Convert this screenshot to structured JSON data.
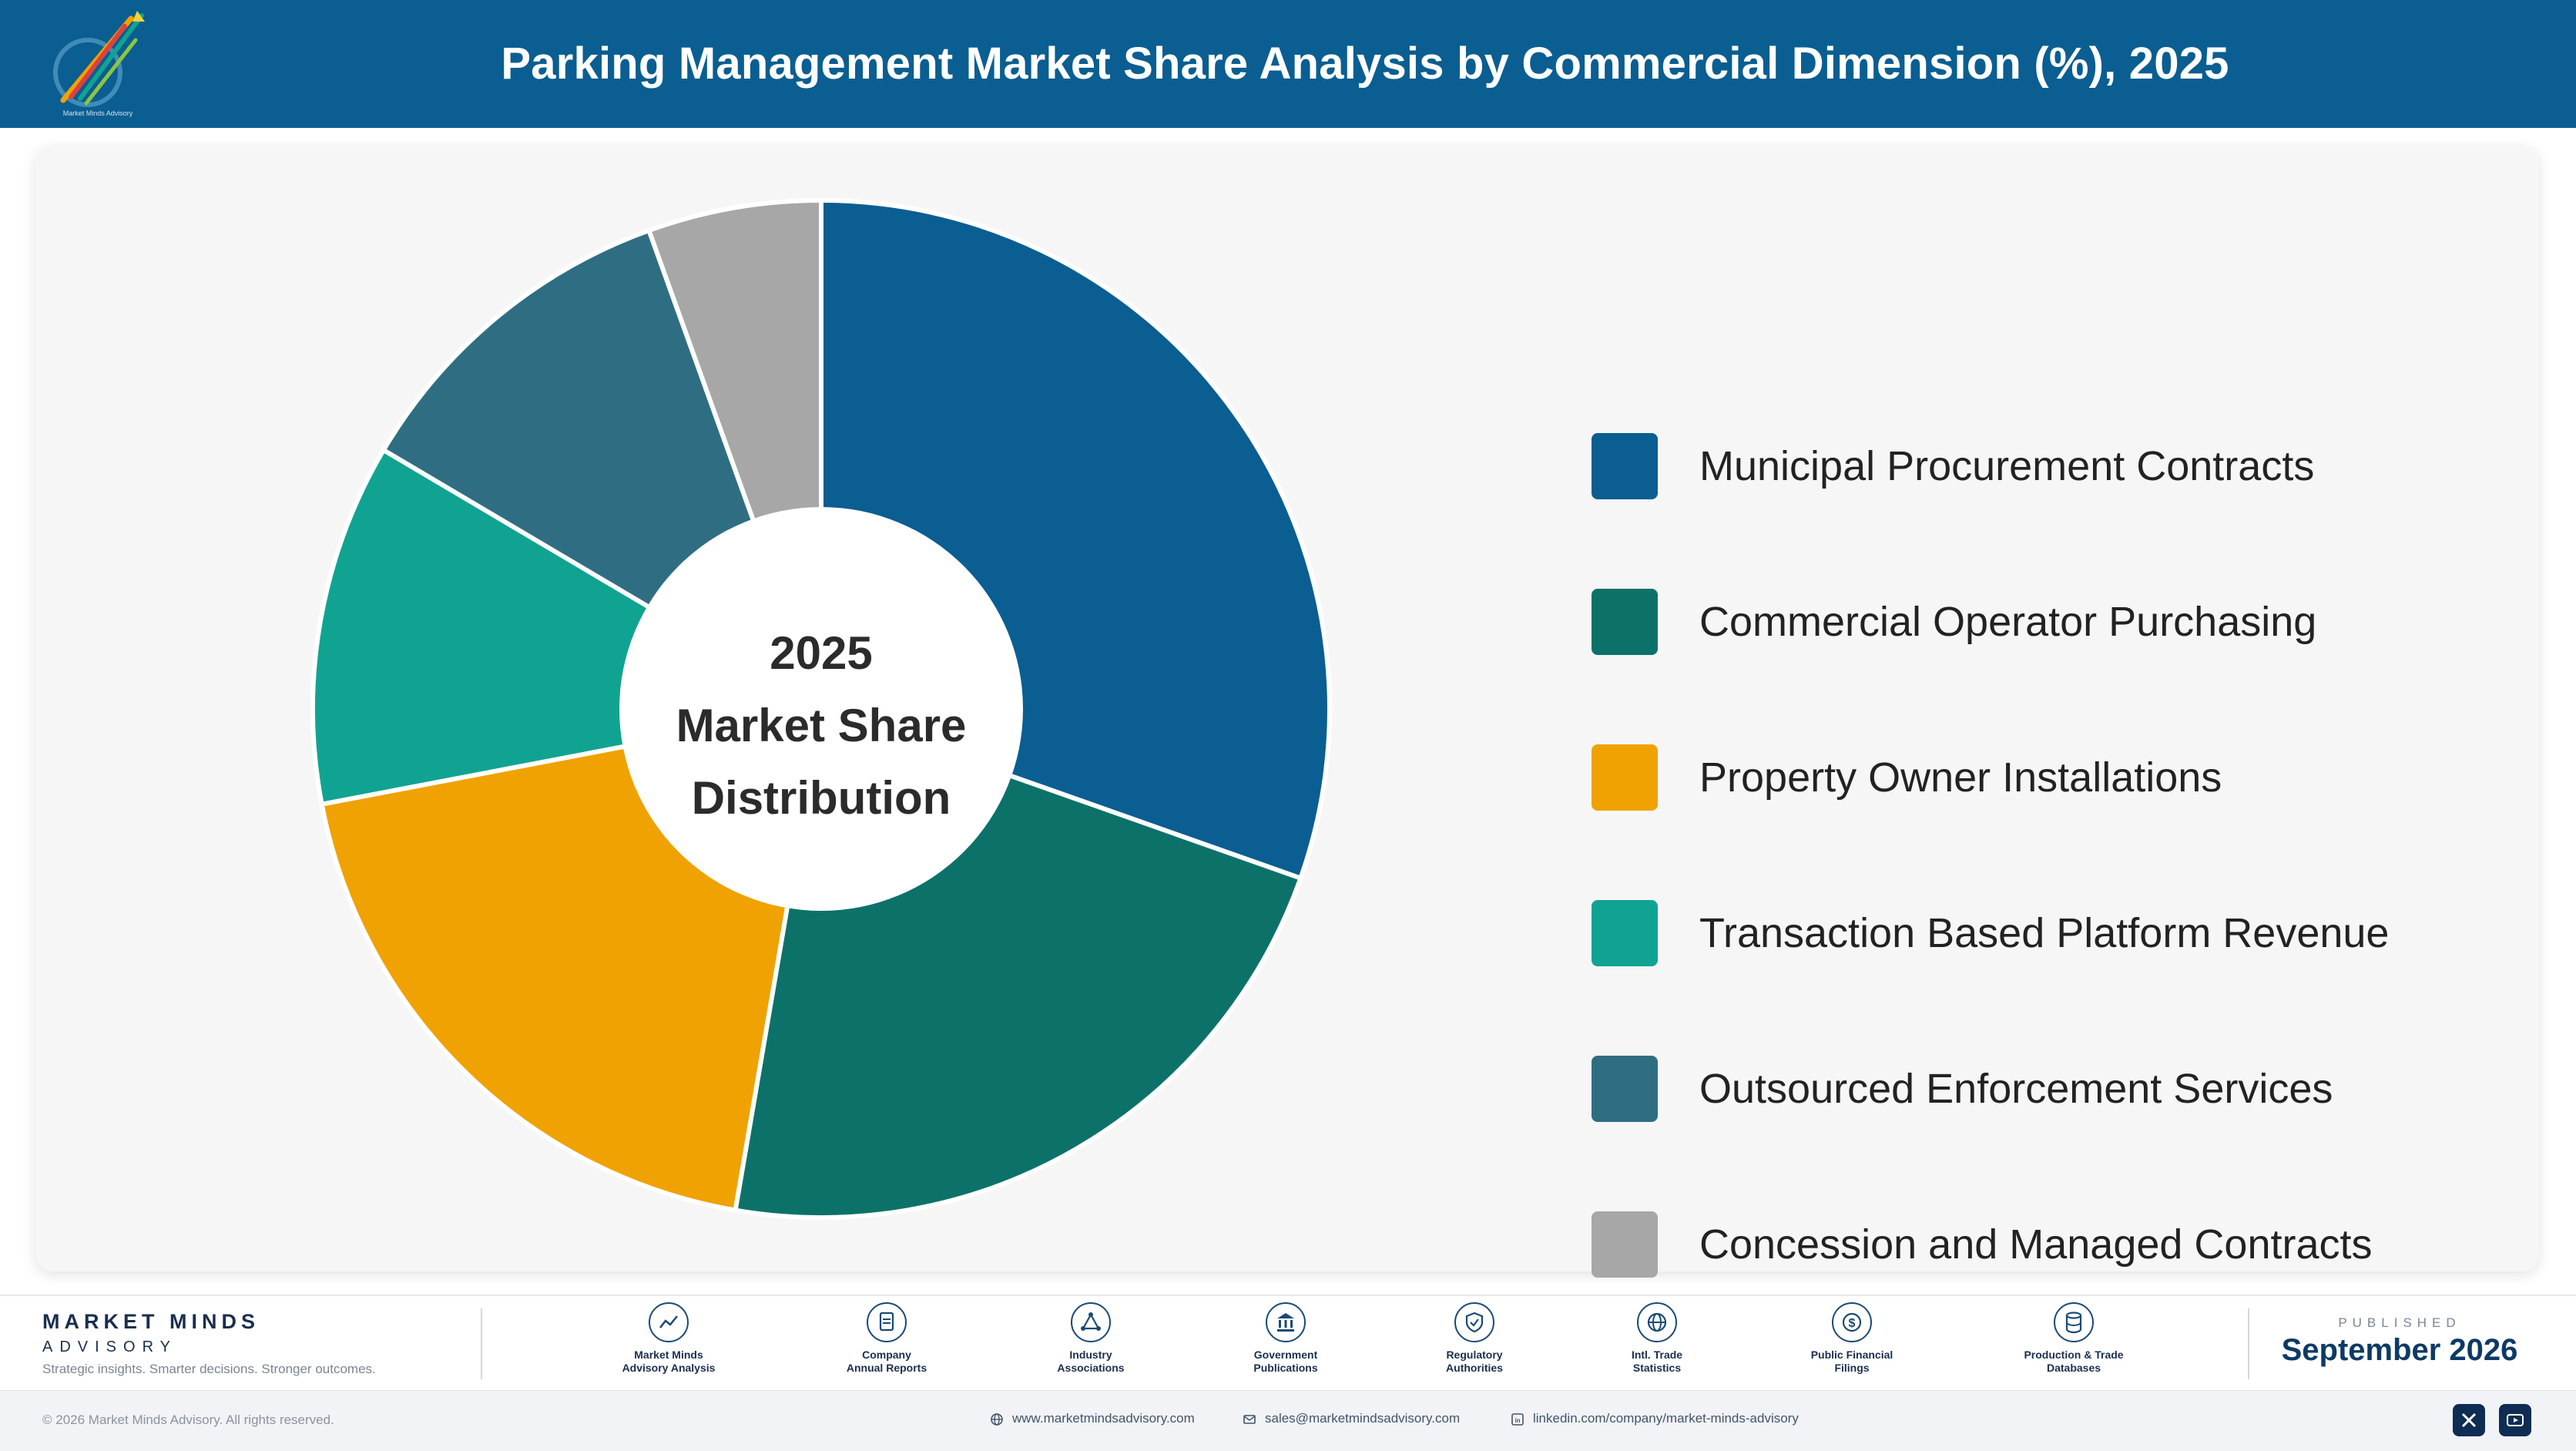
{
  "header": {
    "title": "Parking Management Market Share Analysis by Commercial Dimension (%), 2025",
    "logo_text": "Market Minds Advisory"
  },
  "chart_data": {
    "type": "pie",
    "title": "Parking Management Market Share Analysis by Commercial Dimension (%), 2025",
    "center_label": [
      "2025",
      "Market Share",
      "Distribution"
    ],
    "categories": [
      "Municipal Procurement Contracts",
      "Commercial Operator Purchasing",
      "Property Owner Installations",
      "Transaction Based Platform Revenue",
      "Outsourced Enforcement Services",
      "Concession and Managed Contracts"
    ],
    "values": [
      30.4,
      22.3,
      19.3,
      11.5,
      11.0,
      5.5
    ],
    "colors": [
      "#0a5e91",
      "#0c7269",
      "#f0a202",
      "#11a392",
      "#2f6e82",
      "#a7a7a7"
    ],
    "legend_position": "right",
    "donut": true
  },
  "footer": {
    "brand_name": "MARKET MINDS",
    "brand_sub": "ADVISORY",
    "tagline": "Strategic insights. Smarter decisions. Stronger outcomes.",
    "sources": [
      {
        "label": "Market Minds\nAdvisory Analysis",
        "icon": "chart-line-icon"
      },
      {
        "label": "Company\nAnnual Reports",
        "icon": "document-icon"
      },
      {
        "label": "Industry\nAssociations",
        "icon": "network-icon"
      },
      {
        "label": "Government\nPublications",
        "icon": "government-building-icon"
      },
      {
        "label": "Regulatory\nAuthorities",
        "icon": "shield-check-icon"
      },
      {
        "label": "Intl. Trade\nStatistics",
        "icon": "globe-icon"
      },
      {
        "label": "Public Financial\nFilings",
        "icon": "dollar-coin-icon"
      },
      {
        "label": "Production & Trade\nDatabases",
        "icon": "database-icon"
      }
    ],
    "published_label": "PUBLISHED",
    "published_date": "September 2026",
    "copyright": "© 2026 Market Minds Advisory. All rights reserved.",
    "website": "www.marketmindsadvisory.com",
    "email": "sales@marketmindsadvisory.com",
    "linkedin": "linkedin.com/company/market-minds-advisory"
  }
}
